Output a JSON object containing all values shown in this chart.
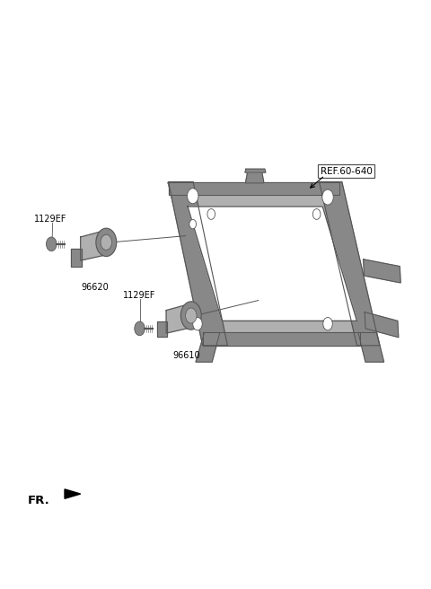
{
  "bg_color": "#ffffff",
  "line_color": "#555555",
  "part_color": "#b0b0b0",
  "dark_part_color": "#888888",
  "text_color": "#000000",
  "labels": {
    "ref": "REF.60-640",
    "part1_label": "1129EF",
    "part1_num": "96620",
    "part2_label": "1129EF",
    "part2_num": "96610",
    "fr_label": "FR."
  }
}
